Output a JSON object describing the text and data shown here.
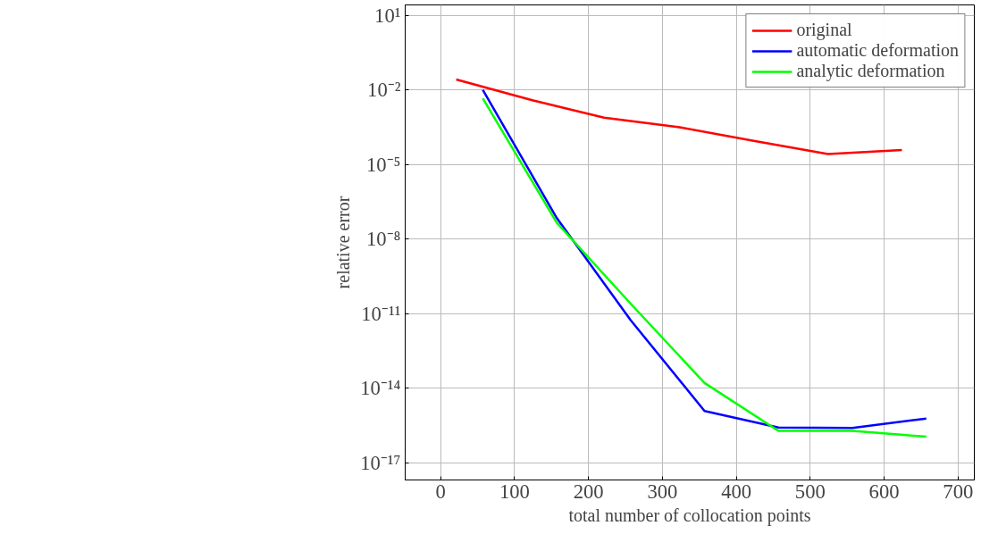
{
  "chart_data": {
    "type": "line",
    "xlabel": "total number of collocation points",
    "ylabel": "relative error",
    "xlim": [
      -48,
      722
    ],
    "xticks": [
      0,
      100,
      200,
      300,
      400,
      500,
      600,
      700
    ],
    "ylim": [
      2e-18,
      26
    ],
    "log": "y",
    "yticks": [
      {
        "value": 10,
        "label": "10¹"
      },
      {
        "value": 0.01,
        "label": "10⁻²"
      },
      {
        "value": 1e-05,
        "label": "10⁻⁵"
      },
      {
        "value": 1e-08,
        "label": "10⁻⁸"
      },
      {
        "value": 1e-11,
        "label": "10⁻¹¹"
      },
      {
        "value": 1e-14,
        "label": "10⁻¹⁴"
      },
      {
        "value": 1e-17,
        "label": "10⁻¹⁷"
      }
    ],
    "grid": true,
    "legend": "top right",
    "series": [
      {
        "name": "original",
        "color": "#ff0000",
        "x": [
          21,
          124,
          221,
          321,
          422,
          524,
          624
        ],
        "values": [
          0.026,
          0.0038,
          0.00076,
          0.00032,
          9e-05,
          2.6e-05,
          3.8e-05
        ]
      },
      {
        "name": "automatic deformation",
        "color": "#0000ff",
        "x": [
          57,
          157,
          257,
          357,
          457,
          557,
          657
        ],
        "values": [
          0.01,
          7e-08,
          5.4e-12,
          1.2e-15,
          2.6e-16,
          2.5e-16,
          5.9e-16
        ]
      },
      {
        "name": "analytic deformation",
        "color": "#00ff00",
        "x": [
          57,
          157,
          257,
          357,
          457,
          557,
          657
        ],
        "values": [
          0.0045,
          4.5e-08,
          2.5e-11,
          1.6e-14,
          1.9e-16,
          1.9e-16,
          1.1e-16
        ]
      }
    ]
  }
}
